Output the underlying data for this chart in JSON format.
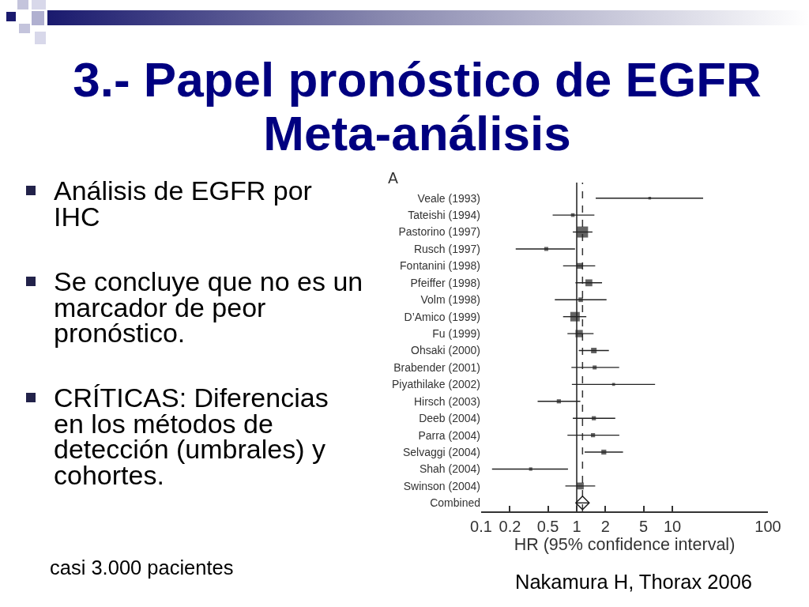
{
  "chart_data": {
    "type": "bubble",
    "title": "3.- Papel pronóstico de EGFR\nMeta-análisis",
    "xlabel": "HR (95% confidence interval)",
    "annotations": [
      "A",
      "Análisis de EGFR por\nIHC",
      "Se concluye que no es un\nmarcador de peor\npronóstico.",
      "CRÍTICAS: Diferencias\nen los métodos de\ndetección (umbrales) y\ncohortes.",
      "casi 3.000 pacientes",
      "Nakamura H, Thorax 2006"
    ],
    "orientation": "horizontal",
    "log": "x",
    "marker": "square",
    "categories": [
      "Veale (1993)",
      "Tateishi (1994)",
      "Pastorino (1997)",
      "Rusch (1997)",
      "Fontanini (1998)",
      "Pfeiffer (1998)",
      "Volm (1998)",
      "D’Amico (1999)",
      "Fu (1999)",
      "Ohsaki (2000)",
      "Brabender (2001)",
      "Piyathilake (2002)",
      "Hirsch (2003)",
      "Deeb (2004)",
      "Parra (2004)",
      "Selvaggi (2004)",
      "Shah (2004)",
      "Swinson (2004)",
      "Combined"
    ],
    "series": [
      {
        "color": "#222222",
        "values": [
          5.8,
          0.91,
          1.15,
          0.48,
          1.07,
          1.34,
          1.1,
          0.96,
          1.06,
          1.51,
          1.54,
          2.43,
          0.65,
          1.51,
          1.48,
          1.92,
          0.33,
          1.09,
          null
        ],
        "sizes": [
          0.06,
          0.11,
          1,
          0.13,
          0.27,
          0.39,
          0.17,
          0.73,
          0.44,
          0.25,
          0.13,
          0.07,
          0.14,
          0.14,
          0.14,
          0.2,
          0.09,
          0.39,
          null
        ],
        "errors": [
          [
            1.58,
            21
          ],
          [
            0.56,
            1.53
          ],
          [
            0.91,
            1.46
          ],
          [
            0.23,
            0.96
          ],
          [
            0.72,
            1.56
          ],
          [
            0.97,
            1.84
          ],
          [
            0.59,
            2.05
          ],
          [
            0.72,
            1.26
          ],
          [
            0.8,
            1.5
          ],
          [
            1.05,
            2.17
          ],
          [
            0.88,
            2.78
          ],
          [
            0.89,
            6.6
          ],
          [
            0.39,
            1.09
          ],
          [
            0.91,
            2.53
          ],
          [
            0.8,
            2.79
          ],
          [
            1.21,
            3.05
          ],
          [
            0.13,
            0.81
          ],
          [
            0.76,
            1.56
          ],
          null
        ]
      },
      {
        "type": "scatter",
        "marker": "diamond",
        "color": "#1a1a1a",
        "values": [
          null,
          null,
          null,
          null,
          null,
          null,
          null,
          null,
          null,
          null,
          null,
          null,
          null,
          null,
          null,
          null,
          null,
          null,
          1.15
        ],
        "errors": [
          null,
          null,
          null,
          null,
          null,
          null,
          null,
          null,
          null,
          null,
          null,
          null,
          null,
          null,
          null,
          null,
          null,
          null,
          [
            0.98,
            1.35
          ]
        ]
      }
    ],
    "ref_lines": [
      {
        "axis": "x",
        "value": 1,
        "color": "#555555",
        "line_style": "solid"
      },
      {
        "axis": "x",
        "value": 1.15,
        "color": "#333333",
        "line_style": "dashed"
      }
    ],
    "xlim": [
      0.1,
      100
    ],
    "xticks": [
      0.1,
      0.2,
      0.5,
      1,
      2,
      5,
      10,
      100
    ]
  }
}
